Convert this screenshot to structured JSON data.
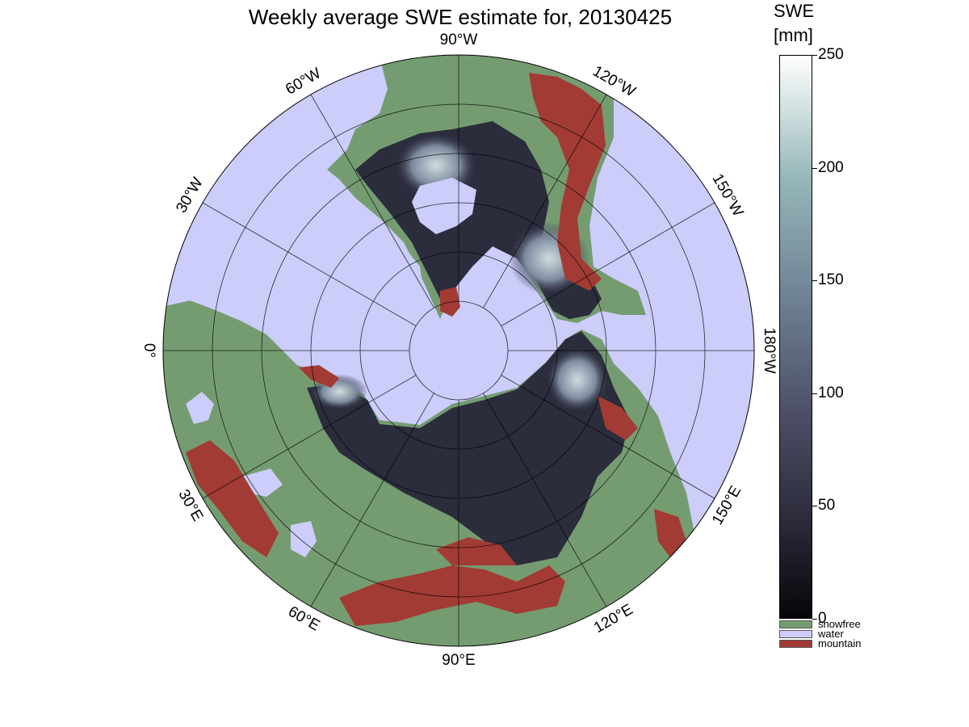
{
  "title": "Weekly average SWE estimate for, 20130425",
  "colors": {
    "water": "#cccdfb",
    "snowfree": "#759c71",
    "mountain": "#a23b34",
    "swe_low": "#06060a",
    "swe_high": "#ffffff"
  },
  "longitude_labels": [
    {
      "id": "90w",
      "text": "90°W"
    },
    {
      "id": "120w",
      "text": "120°W"
    },
    {
      "id": "150w",
      "text": "150°W"
    },
    {
      "id": "180w",
      "text": "180°W"
    },
    {
      "id": "150e",
      "text": "150°E"
    },
    {
      "id": "120e",
      "text": "120°E"
    },
    {
      "id": "90e",
      "text": "90°E"
    },
    {
      "id": "60e",
      "text": "60°E"
    },
    {
      "id": "30e",
      "text": "30°E"
    },
    {
      "id": "0",
      "text": "0°"
    },
    {
      "id": "30w",
      "text": "30°W"
    },
    {
      "id": "60w",
      "text": "60°W"
    }
  ],
  "colorbar": {
    "title_line1": "SWE",
    "title_line2": "[mm]",
    "min": 0,
    "max": 250,
    "ticks": [
      "0",
      "50",
      "100",
      "150",
      "200",
      "250"
    ],
    "legend": [
      {
        "label": "snowfree",
        "color_key": "snowfree"
      },
      {
        "label": "water",
        "color_key": "water"
      },
      {
        "label": "mountain",
        "color_key": "mountain"
      }
    ]
  }
}
